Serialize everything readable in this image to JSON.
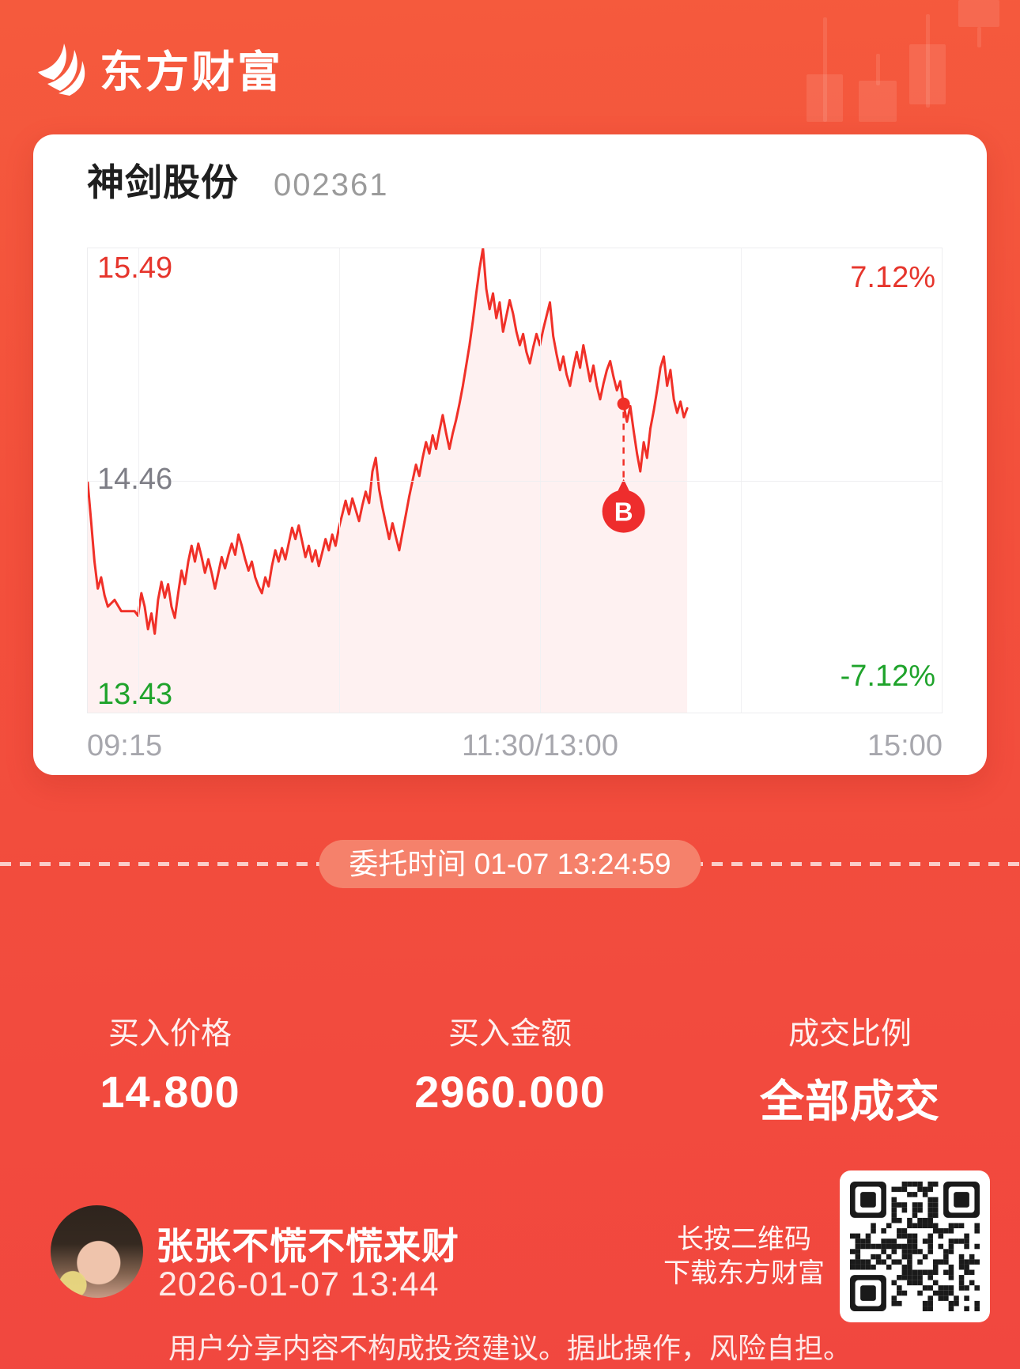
{
  "header": {
    "brand": "东方财富"
  },
  "card": {
    "stock_name": "神剑股份",
    "stock_code": "002361"
  },
  "chart_data": {
    "type": "line",
    "title": "神剑股份 002361 intraday price",
    "x_axis": {
      "labels": [
        "09:15",
        "11:30/13:00",
        "15:00"
      ],
      "total_minutes": 255,
      "gridline_times": [
        15,
        75,
        135,
        195
      ],
      "grid": "on"
    },
    "y_axis": {
      "high": 15.49,
      "prev_close": 14.46,
      "low": 13.43,
      "high_pct": "7.12%",
      "low_pct": "-7.12%"
    },
    "series": [
      {
        "name": "price",
        "points": [
          [
            0,
            14.45
          ],
          [
            1,
            14.28
          ],
          [
            2,
            14.1
          ],
          [
            3,
            13.98
          ],
          [
            4,
            14.03
          ],
          [
            5,
            13.95
          ],
          [
            6,
            13.9
          ],
          [
            8,
            13.93
          ],
          [
            10,
            13.88
          ],
          [
            14,
            13.88
          ],
          [
            15,
            13.86
          ],
          [
            16,
            13.96
          ],
          [
            17,
            13.9
          ],
          [
            18,
            13.8
          ],
          [
            19,
            13.87
          ],
          [
            20,
            13.78
          ],
          [
            21,
            13.93
          ],
          [
            22,
            14.01
          ],
          [
            23,
            13.94
          ],
          [
            24,
            14.0
          ],
          [
            25,
            13.9
          ],
          [
            26,
            13.85
          ],
          [
            27,
            13.96
          ],
          [
            28,
            14.06
          ],
          [
            29,
            14.0
          ],
          [
            30,
            14.1
          ],
          [
            31,
            14.17
          ],
          [
            32,
            14.1
          ],
          [
            33,
            14.18
          ],
          [
            34,
            14.12
          ],
          [
            35,
            14.05
          ],
          [
            36,
            14.11
          ],
          [
            37,
            14.05
          ],
          [
            38,
            13.98
          ],
          [
            39,
            14.05
          ],
          [
            40,
            14.12
          ],
          [
            41,
            14.07
          ],
          [
            42,
            14.13
          ],
          [
            43,
            14.18
          ],
          [
            44,
            14.13
          ],
          [
            45,
            14.22
          ],
          [
            46,
            14.17
          ],
          [
            47,
            14.11
          ],
          [
            48,
            14.06
          ],
          [
            49,
            14.1
          ],
          [
            50,
            14.03
          ],
          [
            51,
            13.99
          ],
          [
            52,
            13.96
          ],
          [
            53,
            14.03
          ],
          [
            54,
            13.99
          ],
          [
            55,
            14.08
          ],
          [
            56,
            14.15
          ],
          [
            57,
            14.1
          ],
          [
            58,
            14.16
          ],
          [
            59,
            14.11
          ],
          [
            60,
            14.18
          ],
          [
            61,
            14.25
          ],
          [
            62,
            14.2
          ],
          [
            63,
            14.26
          ],
          [
            64,
            14.19
          ],
          [
            65,
            14.12
          ],
          [
            66,
            14.17
          ],
          [
            67,
            14.1
          ],
          [
            68,
            14.15
          ],
          [
            69,
            14.08
          ],
          [
            70,
            14.14
          ],
          [
            71,
            14.2
          ],
          [
            72,
            14.15
          ],
          [
            73,
            14.22
          ],
          [
            74,
            14.17
          ],
          [
            75,
            14.25
          ],
          [
            76,
            14.31
          ],
          [
            77,
            14.37
          ],
          [
            78,
            14.31
          ],
          [
            79,
            14.38
          ],
          [
            80,
            14.33
          ],
          [
            81,
            14.28
          ],
          [
            82,
            14.35
          ],
          [
            83,
            14.41
          ],
          [
            84,
            14.36
          ],
          [
            85,
            14.5
          ],
          [
            86,
            14.56
          ],
          [
            87,
            14.42
          ],
          [
            88,
            14.34
          ],
          [
            89,
            14.27
          ],
          [
            90,
            14.2
          ],
          [
            91,
            14.27
          ],
          [
            92,
            14.21
          ],
          [
            93,
            14.15
          ],
          [
            94,
            14.23
          ],
          [
            95,
            14.31
          ],
          [
            96,
            14.39
          ],
          [
            97,
            14.46
          ],
          [
            98,
            14.53
          ],
          [
            99,
            14.48
          ],
          [
            100,
            14.56
          ],
          [
            101,
            14.63
          ],
          [
            102,
            14.58
          ],
          [
            103,
            14.66
          ],
          [
            104,
            14.6
          ],
          [
            105,
            14.68
          ],
          [
            106,
            14.75
          ],
          [
            107,
            14.67
          ],
          [
            108,
            14.6
          ],
          [
            109,
            14.67
          ],
          [
            110,
            14.73
          ],
          [
            111,
            14.8
          ],
          [
            112,
            14.88
          ],
          [
            113,
            14.97
          ],
          [
            114,
            15.06
          ],
          [
            115,
            15.17
          ],
          [
            116,
            15.29
          ],
          [
            117,
            15.4
          ],
          [
            118,
            15.49
          ],
          [
            119,
            15.31
          ],
          [
            120,
            15.22
          ],
          [
            121,
            15.29
          ],
          [
            122,
            15.18
          ],
          [
            123,
            15.25
          ],
          [
            124,
            15.12
          ],
          [
            125,
            15.19
          ],
          [
            126,
            15.26
          ],
          [
            127,
            15.2
          ],
          [
            128,
            15.12
          ],
          [
            129,
            15.06
          ],
          [
            130,
            15.11
          ],
          [
            131,
            15.03
          ],
          [
            132,
            14.98
          ],
          [
            133,
            15.05
          ],
          [
            134,
            15.11
          ],
          [
            135,
            15.06
          ],
          [
            136,
            15.13
          ],
          [
            137,
            15.19
          ],
          [
            138,
            15.25
          ],
          [
            139,
            15.1
          ],
          [
            140,
            15.02
          ],
          [
            141,
            14.95
          ],
          [
            142,
            15.01
          ],
          [
            143,
            14.93
          ],
          [
            144,
            14.88
          ],
          [
            145,
            14.96
          ],
          [
            146,
            15.03
          ],
          [
            147,
            14.96
          ],
          [
            148,
            15.06
          ],
          [
            149,
            14.98
          ],
          [
            150,
            14.9
          ],
          [
            151,
            14.97
          ],
          [
            152,
            14.88
          ],
          [
            153,
            14.82
          ],
          [
            154,
            14.89
          ],
          [
            155,
            14.95
          ],
          [
            156,
            14.99
          ],
          [
            157,
            14.92
          ],
          [
            158,
            14.86
          ],
          [
            159,
            14.9
          ],
          [
            160,
            14.8
          ],
          [
            161,
            14.72
          ],
          [
            162,
            14.79
          ],
          [
            163,
            14.68
          ],
          [
            164,
            14.58
          ],
          [
            165,
            14.5
          ],
          [
            166,
            14.63
          ],
          [
            167,
            14.56
          ],
          [
            168,
            14.69
          ],
          [
            169,
            14.77
          ],
          [
            170,
            14.86
          ],
          [
            171,
            14.96
          ],
          [
            172,
            15.01
          ],
          [
            173,
            14.88
          ],
          [
            174,
            14.95
          ],
          [
            175,
            14.82
          ],
          [
            176,
            14.76
          ],
          [
            177,
            14.81
          ],
          [
            178,
            14.74
          ],
          [
            179,
            14.78
          ]
        ]
      }
    ],
    "buy_marker": {
      "t": 160,
      "price": 14.8,
      "label": "B"
    }
  },
  "order": {
    "pill": "委托时间 01-07 13:24:59",
    "stats": [
      {
        "label": "买入价格",
        "value": "14.800"
      },
      {
        "label": "买入金额",
        "value": "2960.000"
      },
      {
        "label": "成交比例",
        "value": "全部成交"
      }
    ]
  },
  "footer": {
    "username": "张张不慌不慌来财",
    "datetime": "2026-01-07 13:44",
    "qr_caption_line1": "长按二维码",
    "qr_caption_line2": "下载东方财富",
    "disclaimer": "用户分享内容不构成投资建议。据此操作，风险自担。"
  },
  "colors": {
    "background_top": "#F55A3D",
    "background_bottom": "#F1473F",
    "card": "#FFFFFF",
    "line": "#F03028",
    "area_fill": "rgba(240,60,50,0.07)",
    "up_text": "#E6352C",
    "down_text": "#1FA32B",
    "prev_close_text": "#7E7E86",
    "time_text": "#A7A7AD",
    "balloon": "#EE2D2D",
    "pill_bg": "#F5816B"
  }
}
